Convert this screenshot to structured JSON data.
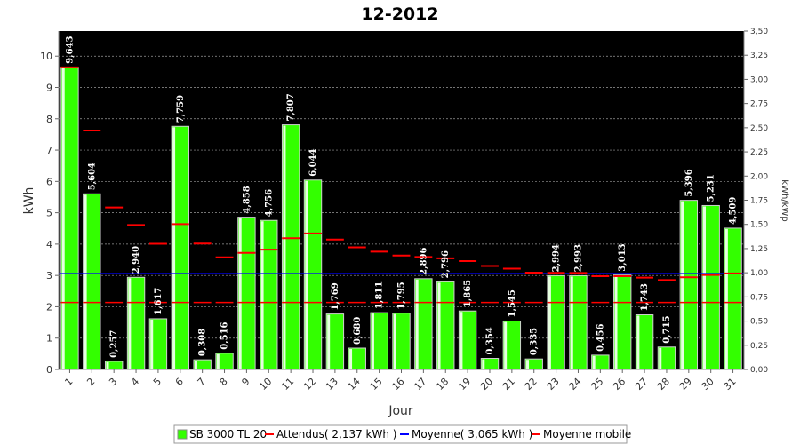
{
  "chart_data": {
    "type": "bar",
    "title": "12-2012",
    "xlabel": "Jour",
    "ylabel": "kWh",
    "y2label": "kWh/kWp",
    "ylim": [
      0,
      10.8
    ],
    "y2lim": [
      0,
      3.5
    ],
    "yticks": [
      "0",
      "1",
      "2",
      "3",
      "4",
      "5",
      "6",
      "7",
      "8",
      "9",
      "10"
    ],
    "y2ticks": [
      "0,00",
      "0,25",
      "0,50",
      "0,75",
      "1,00",
      "1,25",
      "1,50",
      "1,75",
      "2,00",
      "2,25",
      "2,50",
      "2,75",
      "3,00",
      "3,25",
      "3,50"
    ],
    "grid": true,
    "legend_position": "bottom",
    "categories": [
      "1",
      "2",
      "3",
      "4",
      "5",
      "6",
      "7",
      "8",
      "9",
      "10",
      "11",
      "12",
      "13",
      "14",
      "15",
      "16",
      "17",
      "18",
      "19",
      "20",
      "21",
      "22",
      "23",
      "24",
      "25",
      "26",
      "27",
      "28",
      "29",
      "30",
      "31"
    ],
    "series": [
      {
        "name": "SB 3000 TL 20",
        "kind": "bar",
        "color": "#33ff00",
        "values": [
          9.643,
          5.604,
          0.257,
          2.94,
          1.617,
          7.759,
          0.308,
          0.516,
          4.858,
          4.756,
          7.807,
          6.044,
          1.769,
          0.68,
          1.811,
          1.795,
          2.896,
          2.796,
          1.865,
          0.354,
          1.545,
          0.335,
          2.994,
          2.993,
          0.456,
          3.013,
          1.743,
          0.715,
          5.396,
          5.231,
          4.509
        ],
        "labels": [
          "9,643",
          "5,604",
          "0,257",
          "2,940",
          "1,617",
          "7,759",
          "0,308",
          "0,516",
          "4,858",
          "4,756",
          "7,807",
          "6,044",
          "1,769",
          "0,680",
          "1,811",
          "1,795",
          "2,896",
          "2,796",
          "1,865",
          "0,354",
          "1,545",
          "0,335",
          "2,994",
          "2,993",
          "0,456",
          "3,013",
          "1,743",
          "0,715",
          "5,396",
          "5,231",
          "4,509"
        ]
      },
      {
        "name": "Attendus( 2,137 kWh )",
        "kind": "constant",
        "color": "#ff0000",
        "value": 2.137
      },
      {
        "name": "Moyenne( 3,065 kWh )",
        "kind": "hline",
        "color": "#0000ff",
        "value": 3.065
      },
      {
        "name": "Moyenne mobile",
        "kind": "step",
        "color": "#ff0000",
        "values": [
          9.643,
          7.624,
          5.168,
          4.611,
          4.012,
          4.637,
          4.018,
          3.58,
          3.722,
          3.825,
          4.187,
          4.342,
          4.144,
          3.897,
          3.758,
          3.635,
          3.591,
          3.547,
          3.458,
          3.303,
          3.219,
          3.088,
          3.084,
          3.08,
          2.975,
          2.976,
          2.931,
          2.852,
          2.94,
          3.016,
          3.065
        ]
      }
    ]
  }
}
